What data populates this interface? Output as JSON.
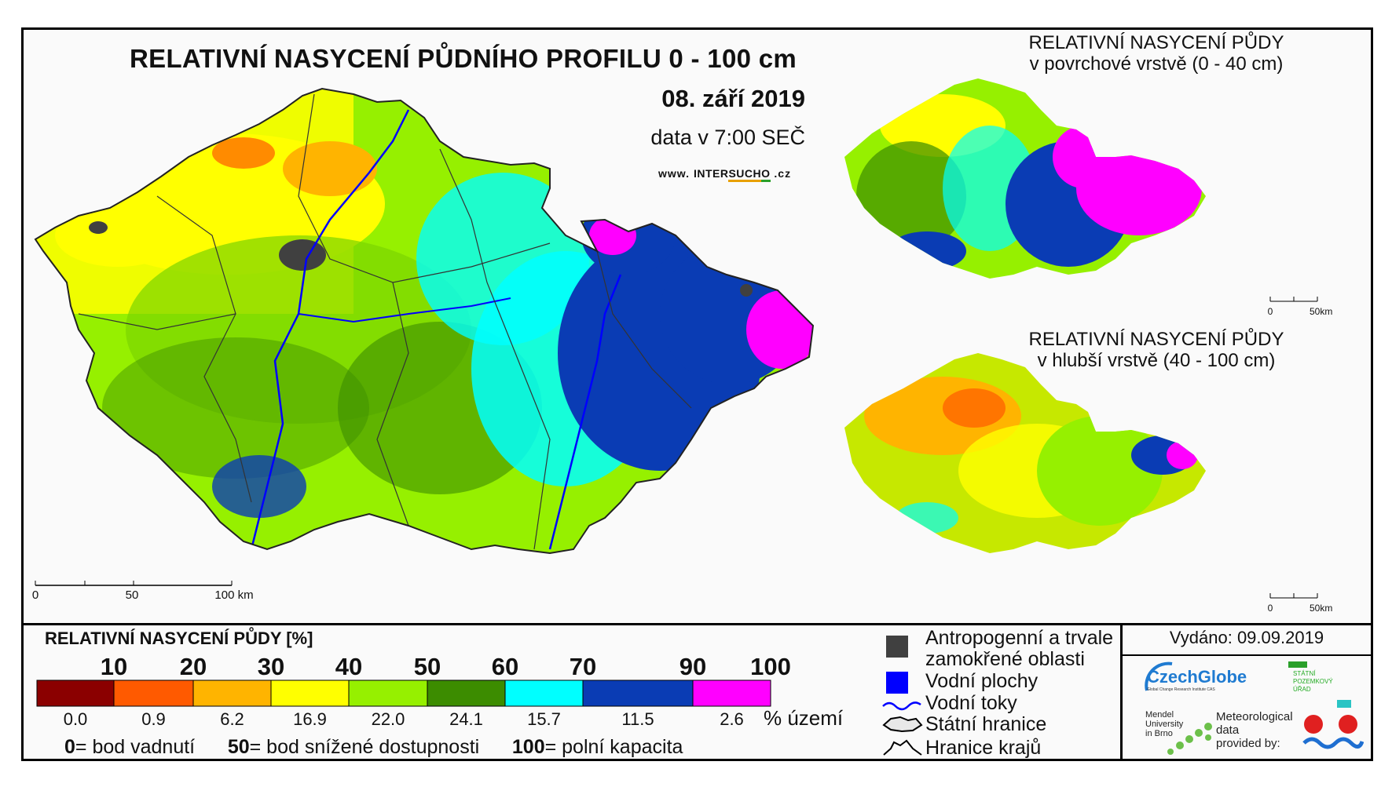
{
  "main_map": {
    "title": "RELATIVNÍ NASYCENÍ PŮDNÍHO PROFILU 0 - 100 cm",
    "date": "08. září 2019",
    "time": "data v 7:00 SEČ",
    "website_prefix": "www.",
    "website_brand_a": "INTER",
    "website_brand_b": "SUCH",
    "website_brand_c": "O",
    "website_suffix": ".cz",
    "scalebar": {
      "labels": [
        "0",
        "50",
        "100 km"
      ]
    }
  },
  "surface_map": {
    "title_line1": "RELATIVNÍ NASYCENÍ PŮDY",
    "title_line2": "v povrchové vrstvě (0 - 40 cm)",
    "scalebar": {
      "labels": [
        "0",
        "50km"
      ]
    }
  },
  "deep_map": {
    "title_line1": "RELATIVNÍ NASYCENÍ PŮDY",
    "title_line2": "v hlubší vrstvě (40 - 100 cm)",
    "scalebar": {
      "labels": [
        "0",
        "50km"
      ]
    }
  },
  "legend": {
    "title": "RELATIVNÍ NASYCENÍ PŮDY [%]",
    "thresholds": [
      "10",
      "20",
      "30",
      "40",
      "50",
      "60",
      "70",
      "90",
      "100"
    ],
    "classes": [
      {
        "color": "#8b0000",
        "percent": "0.0"
      },
      {
        "color": "#ff5a00",
        "percent": "0.9"
      },
      {
        "color": "#ffb400",
        "percent": "6.2"
      },
      {
        "color": "#ffff00",
        "percent": "16.9"
      },
      {
        "color": "#96f000",
        "percent": "22.0"
      },
      {
        "color": "#3c8c00",
        "percent": "24.1"
      },
      {
        "color": "#00ffff",
        "percent": "15.7"
      },
      {
        "color": "#0a3cb4",
        "percent": "11.5"
      },
      {
        "color": "#ff00ff",
        "percent": "2.6"
      }
    ],
    "percent_unit": "% území",
    "notes": [
      {
        "value": "0",
        "text": "= bod vadnutí"
      },
      {
        "value": "50",
        "text": "= bod snížené dostupnosti"
      },
      {
        "value": "100",
        "text": "= polní kapacita"
      }
    ]
  },
  "layer_legend": {
    "items": [
      {
        "icon": "grey-square-icon",
        "color": "#404040",
        "label_line1": "Antropogenní a trvale",
        "label_line2": "zamokřené oblasti"
      },
      {
        "icon": "blue-square-icon",
        "color": "#0000ff",
        "label_line1": "Vodní plochy"
      },
      {
        "icon": "river-line-icon",
        "color": "#0000ff",
        "label_line1": "Vodní toky"
      },
      {
        "icon": "state-border-icon",
        "color": "#000000",
        "label_line1": "Státní hranice"
      },
      {
        "icon": "region-border-icon",
        "color": "#000000",
        "label_line1": "Hranice krajů"
      }
    ]
  },
  "issued": "Vydáno: 09.09.2019",
  "logos": {
    "czechglobe": "CzechGlobe",
    "czechglobe_sub": "Global Change Research Institute CAS",
    "szu_line1": "STÁTNÍ",
    "szu_line2": "POZEMKOVÝ",
    "szu_line3": "ÚŘAD",
    "mendel_line1": "Mendel",
    "mendel_line2": "University",
    "mendel_line3": "in Brno",
    "meteo_line1": "Meteorological",
    "meteo_line2": "data",
    "meteo_line3": "provided by:"
  }
}
